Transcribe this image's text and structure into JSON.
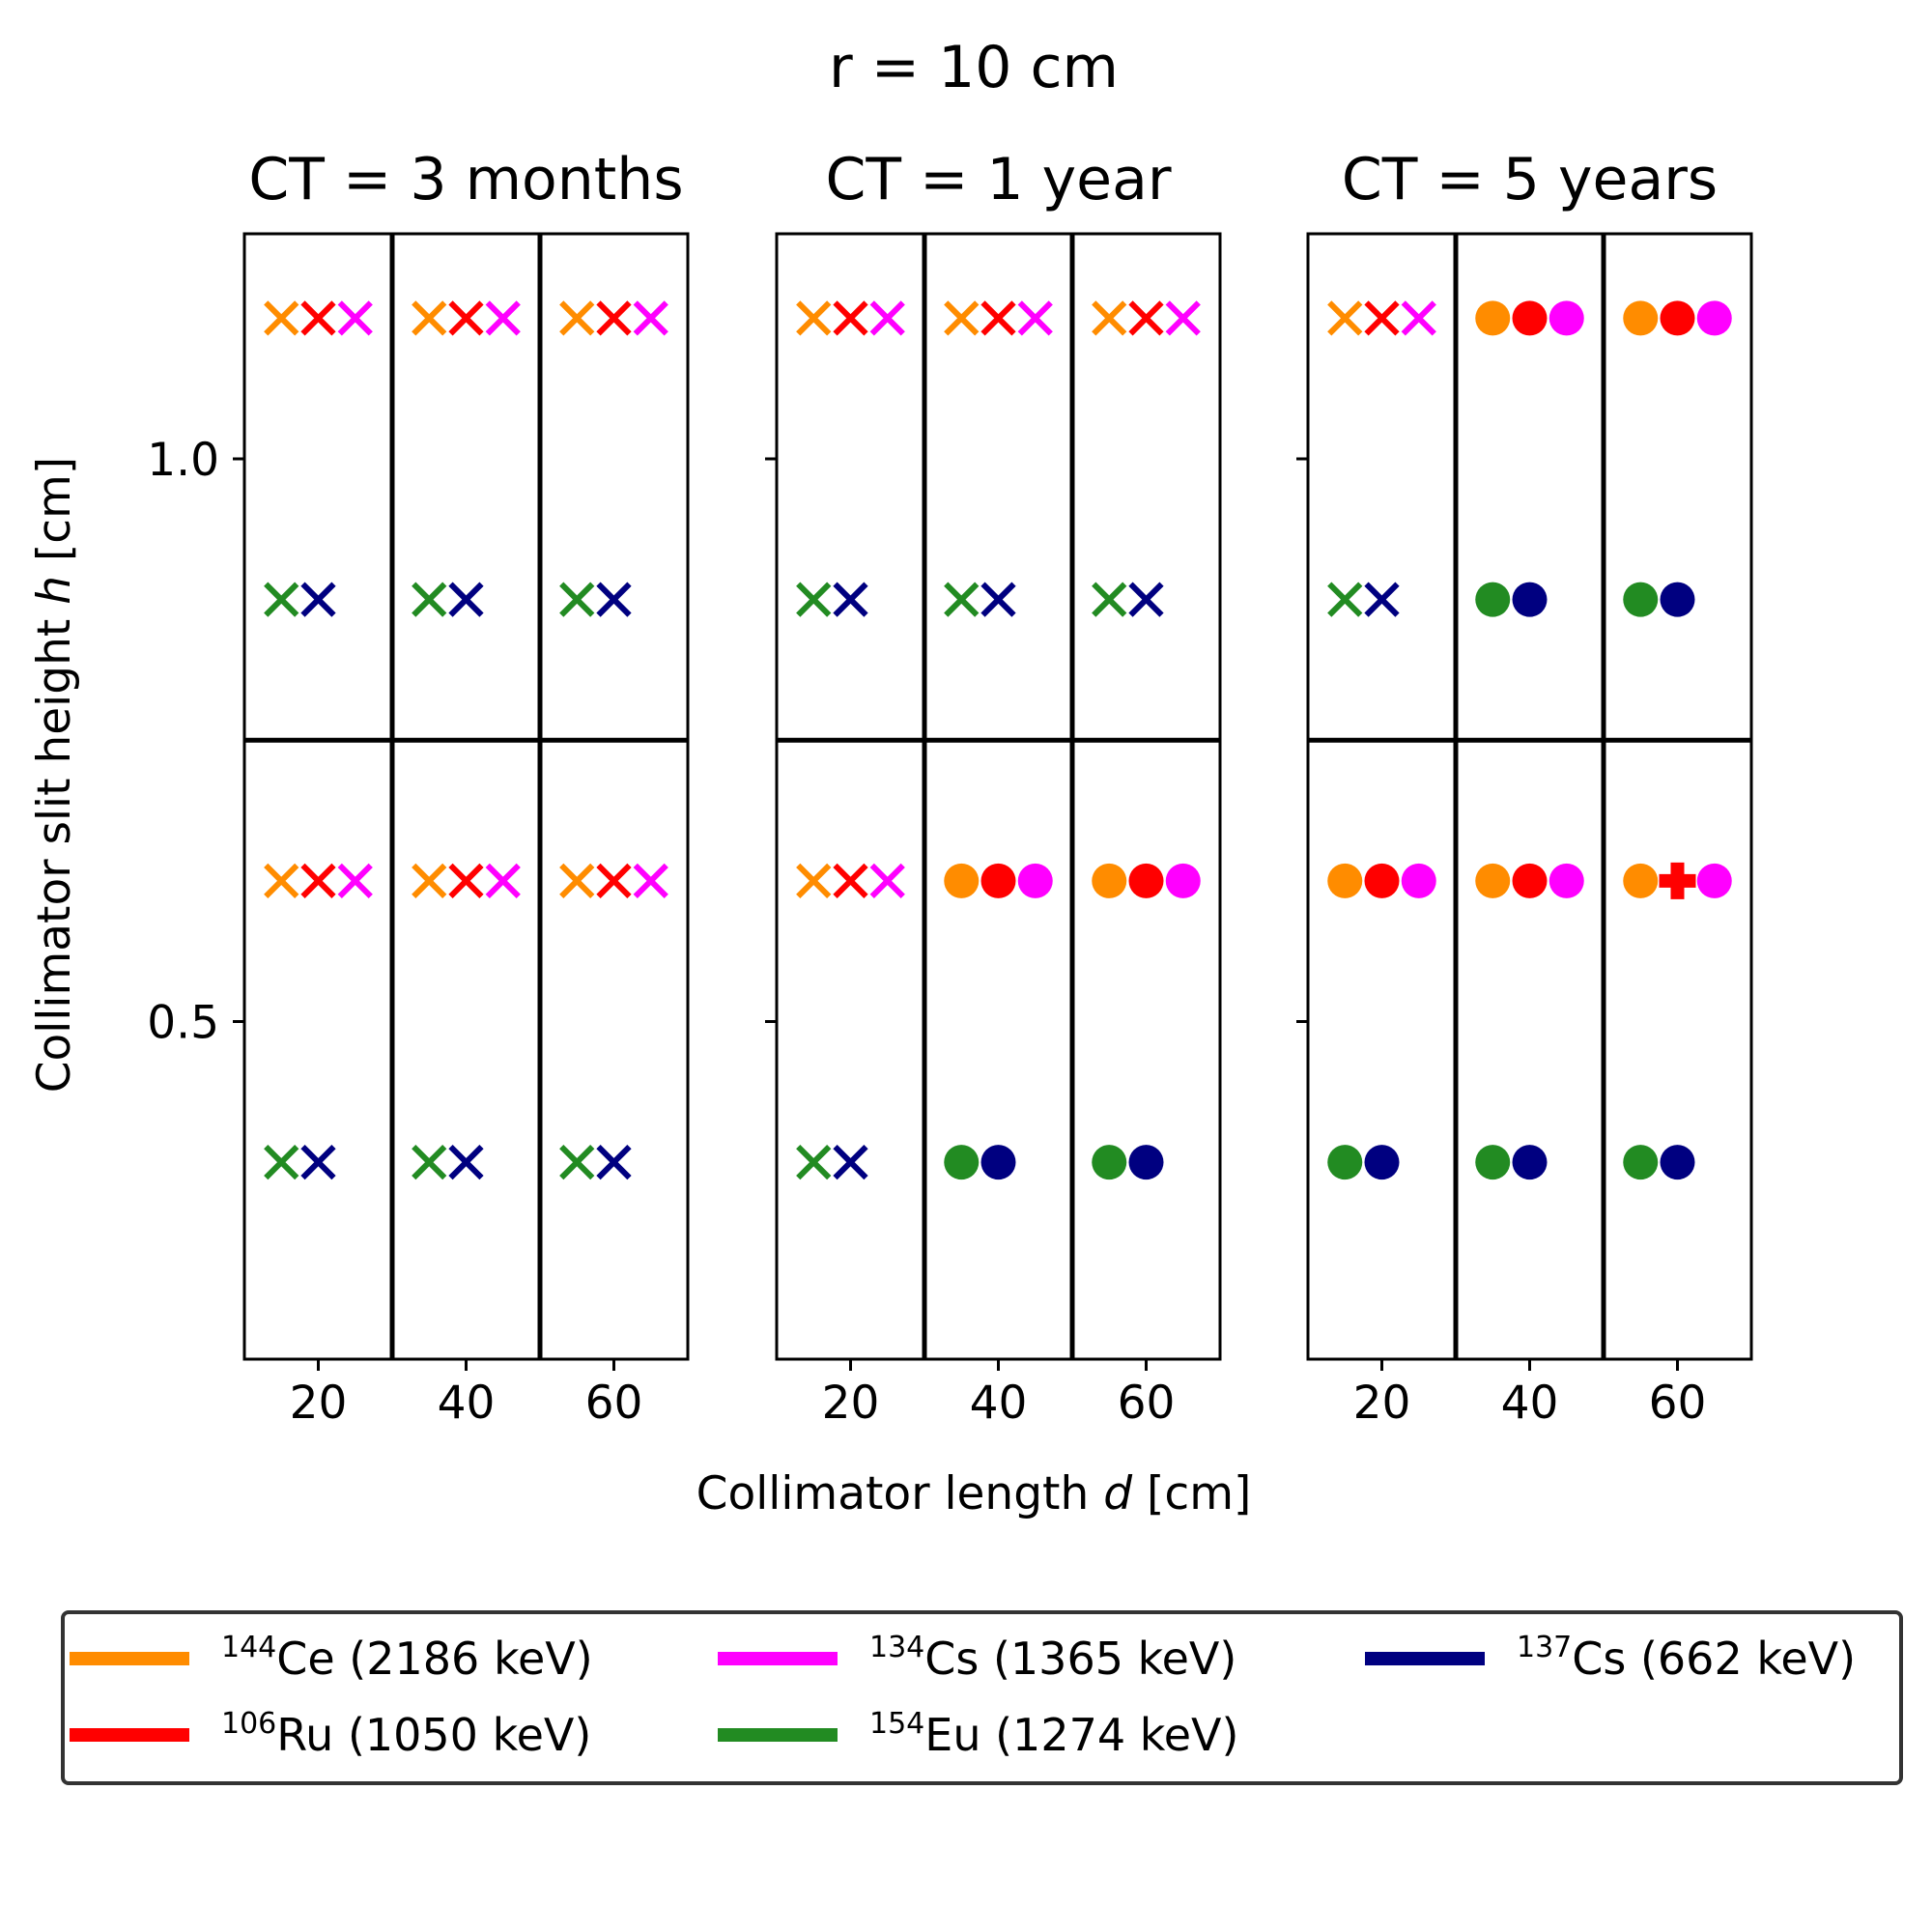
{
  "chart_data": {
    "type": "scatter",
    "title": "r = 10 cm",
    "xlabel": "Collimator length",
    "xlabel_var": "d",
    "xlabel_unit": "[cm]",
    "ylabel": "Collimator slit height",
    "ylabel_var": "h",
    "ylabel_unit": "[cm]",
    "xlim": [
      10,
      70
    ],
    "ylim": [
      0.2,
      1.2
    ],
    "xticks": [
      "20",
      "40",
      "60"
    ],
    "yticks": [
      "0.5",
      "1.0"
    ],
    "group_separators_x": [
      30,
      50
    ],
    "group_separator_y": 0.75,
    "legend_position": "bottom",
    "legend": [
      {
        "key": "ce144",
        "mass": "144",
        "element": "Ce",
        "energy": " (2186 keV)",
        "color": "#ff8c00"
      },
      {
        "key": "ru106",
        "mass": "106",
        "element": "Ru",
        "energy": " (1050 keV)",
        "color": "#ff0000"
      },
      {
        "key": "cs134",
        "mass": "134",
        "element": "Cs",
        "energy": " (1365 keV)",
        "color": "#ff00ff"
      },
      {
        "key": "eu154",
        "mass": "154",
        "element": "Eu",
        "energy": " (1274 keV)",
        "color": "#228b22"
      },
      {
        "key": "cs137",
        "mass": "137",
        "element": "Cs",
        "energy": " (662 keV)",
        "color": "#000080"
      }
    ],
    "panels": [
      {
        "title": "CT = 3 months",
        "points": [
          {
            "series": "ce144",
            "x": 15,
            "y": 1.125,
            "marker": "x"
          },
          {
            "series": "ru106",
            "x": 20,
            "y": 1.125,
            "marker": "x"
          },
          {
            "series": "cs134",
            "x": 25,
            "y": 1.125,
            "marker": "x"
          },
          {
            "series": "eu154",
            "x": 15,
            "y": 0.875,
            "marker": "x"
          },
          {
            "series": "cs137",
            "x": 20,
            "y": 0.875,
            "marker": "x"
          },
          {
            "series": "ce144",
            "x": 35,
            "y": 1.125,
            "marker": "x"
          },
          {
            "series": "ru106",
            "x": 40,
            "y": 1.125,
            "marker": "x"
          },
          {
            "series": "cs134",
            "x": 45,
            "y": 1.125,
            "marker": "x"
          },
          {
            "series": "eu154",
            "x": 35,
            "y": 0.875,
            "marker": "x"
          },
          {
            "series": "cs137",
            "x": 40,
            "y": 0.875,
            "marker": "x"
          },
          {
            "series": "ce144",
            "x": 55,
            "y": 1.125,
            "marker": "x"
          },
          {
            "series": "ru106",
            "x": 60,
            "y": 1.125,
            "marker": "x"
          },
          {
            "series": "cs134",
            "x": 65,
            "y": 1.125,
            "marker": "x"
          },
          {
            "series": "eu154",
            "x": 55,
            "y": 0.875,
            "marker": "x"
          },
          {
            "series": "cs137",
            "x": 60,
            "y": 0.875,
            "marker": "x"
          },
          {
            "series": "ce144",
            "x": 15,
            "y": 0.625,
            "marker": "x"
          },
          {
            "series": "ru106",
            "x": 20,
            "y": 0.625,
            "marker": "x"
          },
          {
            "series": "cs134",
            "x": 25,
            "y": 0.625,
            "marker": "x"
          },
          {
            "series": "eu154",
            "x": 15,
            "y": 0.375,
            "marker": "x"
          },
          {
            "series": "cs137",
            "x": 20,
            "y": 0.375,
            "marker": "x"
          },
          {
            "series": "ce144",
            "x": 35,
            "y": 0.625,
            "marker": "x"
          },
          {
            "series": "ru106",
            "x": 40,
            "y": 0.625,
            "marker": "x"
          },
          {
            "series": "cs134",
            "x": 45,
            "y": 0.625,
            "marker": "x"
          },
          {
            "series": "eu154",
            "x": 35,
            "y": 0.375,
            "marker": "x"
          },
          {
            "series": "cs137",
            "x": 40,
            "y": 0.375,
            "marker": "x"
          },
          {
            "series": "ce144",
            "x": 55,
            "y": 0.625,
            "marker": "x"
          },
          {
            "series": "ru106",
            "x": 60,
            "y": 0.625,
            "marker": "x"
          },
          {
            "series": "cs134",
            "x": 65,
            "y": 0.625,
            "marker": "x"
          },
          {
            "series": "eu154",
            "x": 55,
            "y": 0.375,
            "marker": "x"
          },
          {
            "series": "cs137",
            "x": 60,
            "y": 0.375,
            "marker": "x"
          }
        ]
      },
      {
        "title": "CT = 1 year",
        "points": [
          {
            "series": "ce144",
            "x": 15,
            "y": 1.125,
            "marker": "x"
          },
          {
            "series": "ru106",
            "x": 20,
            "y": 1.125,
            "marker": "x"
          },
          {
            "series": "cs134",
            "x": 25,
            "y": 1.125,
            "marker": "x"
          },
          {
            "series": "eu154",
            "x": 15,
            "y": 0.875,
            "marker": "x"
          },
          {
            "series": "cs137",
            "x": 20,
            "y": 0.875,
            "marker": "x"
          },
          {
            "series": "ce144",
            "x": 35,
            "y": 1.125,
            "marker": "x"
          },
          {
            "series": "ru106",
            "x": 40,
            "y": 1.125,
            "marker": "x"
          },
          {
            "series": "cs134",
            "x": 45,
            "y": 1.125,
            "marker": "x"
          },
          {
            "series": "eu154",
            "x": 35,
            "y": 0.875,
            "marker": "x"
          },
          {
            "series": "cs137",
            "x": 40,
            "y": 0.875,
            "marker": "x"
          },
          {
            "series": "ce144",
            "x": 55,
            "y": 1.125,
            "marker": "x"
          },
          {
            "series": "ru106",
            "x": 60,
            "y": 1.125,
            "marker": "x"
          },
          {
            "series": "cs134",
            "x": 65,
            "y": 1.125,
            "marker": "x"
          },
          {
            "series": "eu154",
            "x": 55,
            "y": 0.875,
            "marker": "x"
          },
          {
            "series": "cs137",
            "x": 60,
            "y": 0.875,
            "marker": "x"
          },
          {
            "series": "ce144",
            "x": 15,
            "y": 0.625,
            "marker": "x"
          },
          {
            "series": "ru106",
            "x": 20,
            "y": 0.625,
            "marker": "x"
          },
          {
            "series": "cs134",
            "x": 25,
            "y": 0.625,
            "marker": "x"
          },
          {
            "series": "eu154",
            "x": 15,
            "y": 0.375,
            "marker": "x"
          },
          {
            "series": "cs137",
            "x": 20,
            "y": 0.375,
            "marker": "x"
          },
          {
            "series": "ce144",
            "x": 35,
            "y": 0.625,
            "marker": "o"
          },
          {
            "series": "ru106",
            "x": 40,
            "y": 0.625,
            "marker": "o"
          },
          {
            "series": "cs134",
            "x": 45,
            "y": 0.625,
            "marker": "o"
          },
          {
            "series": "eu154",
            "x": 35,
            "y": 0.375,
            "marker": "o"
          },
          {
            "series": "cs137",
            "x": 40,
            "y": 0.375,
            "marker": "o"
          },
          {
            "series": "ce144",
            "x": 55,
            "y": 0.625,
            "marker": "o"
          },
          {
            "series": "ru106",
            "x": 60,
            "y": 0.625,
            "marker": "o"
          },
          {
            "series": "cs134",
            "x": 65,
            "y": 0.625,
            "marker": "o"
          },
          {
            "series": "eu154",
            "x": 55,
            "y": 0.375,
            "marker": "o"
          },
          {
            "series": "cs137",
            "x": 60,
            "y": 0.375,
            "marker": "o"
          }
        ]
      },
      {
        "title": "CT = 5 years",
        "points": [
          {
            "series": "ce144",
            "x": 15,
            "y": 1.125,
            "marker": "x"
          },
          {
            "series": "ru106",
            "x": 20,
            "y": 1.125,
            "marker": "x"
          },
          {
            "series": "cs134",
            "x": 25,
            "y": 1.125,
            "marker": "x"
          },
          {
            "series": "eu154",
            "x": 15,
            "y": 0.875,
            "marker": "x"
          },
          {
            "series": "cs137",
            "x": 20,
            "y": 0.875,
            "marker": "x"
          },
          {
            "series": "ce144",
            "x": 35,
            "y": 1.125,
            "marker": "o"
          },
          {
            "series": "ru106",
            "x": 40,
            "y": 1.125,
            "marker": "o"
          },
          {
            "series": "cs134",
            "x": 45,
            "y": 1.125,
            "marker": "o"
          },
          {
            "series": "eu154",
            "x": 35,
            "y": 0.875,
            "marker": "o"
          },
          {
            "series": "cs137",
            "x": 40,
            "y": 0.875,
            "marker": "o"
          },
          {
            "series": "ce144",
            "x": 55,
            "y": 1.125,
            "marker": "o"
          },
          {
            "series": "ru106",
            "x": 60,
            "y": 1.125,
            "marker": "o"
          },
          {
            "series": "cs134",
            "x": 65,
            "y": 1.125,
            "marker": "o"
          },
          {
            "series": "eu154",
            "x": 55,
            "y": 0.875,
            "marker": "o"
          },
          {
            "series": "cs137",
            "x": 60,
            "y": 0.875,
            "marker": "o"
          },
          {
            "series": "ce144",
            "x": 15,
            "y": 0.625,
            "marker": "o"
          },
          {
            "series": "ru106",
            "x": 20,
            "y": 0.625,
            "marker": "o"
          },
          {
            "series": "cs134",
            "x": 25,
            "y": 0.625,
            "marker": "o"
          },
          {
            "series": "eu154",
            "x": 15,
            "y": 0.375,
            "marker": "o"
          },
          {
            "series": "cs137",
            "x": 20,
            "y": 0.375,
            "marker": "o"
          },
          {
            "series": "ce144",
            "x": 35,
            "y": 0.625,
            "marker": "o"
          },
          {
            "series": "ru106",
            "x": 40,
            "y": 0.625,
            "marker": "o"
          },
          {
            "series": "cs134",
            "x": 45,
            "y": 0.625,
            "marker": "o"
          },
          {
            "series": "eu154",
            "x": 35,
            "y": 0.375,
            "marker": "o"
          },
          {
            "series": "cs137",
            "x": 40,
            "y": 0.375,
            "marker": "o"
          },
          {
            "series": "ce144",
            "x": 55,
            "y": 0.625,
            "marker": "o"
          },
          {
            "series": "ru106",
            "x": 60,
            "y": 0.625,
            "marker": "P"
          },
          {
            "series": "cs134",
            "x": 65,
            "y": 0.625,
            "marker": "o"
          },
          {
            "series": "eu154",
            "x": 55,
            "y": 0.375,
            "marker": "o"
          },
          {
            "series": "cs137",
            "x": 60,
            "y": 0.375,
            "marker": "o"
          }
        ]
      }
    ]
  }
}
